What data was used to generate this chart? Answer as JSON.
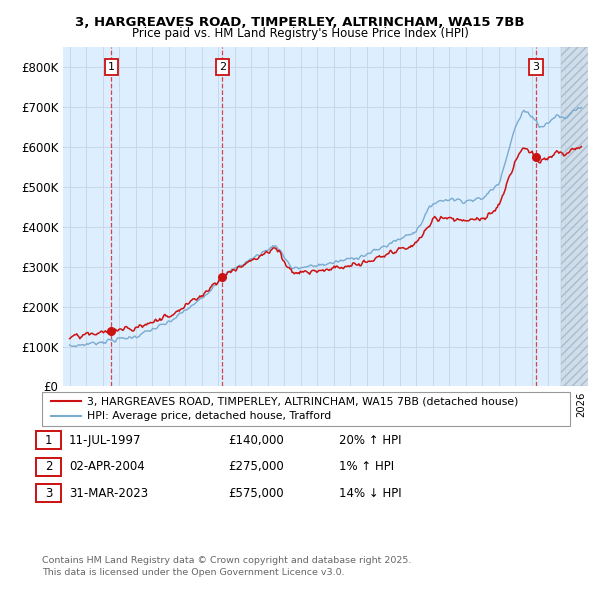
{
  "title_line1": "3, HARGREAVES ROAD, TIMPERLEY, ALTRINCHAM, WA15 7BB",
  "title_line2": "Price paid vs. HM Land Registry's House Price Index (HPI)",
  "ylim": [
    0,
    850000
  ],
  "yticks": [
    0,
    100000,
    200000,
    300000,
    400000,
    500000,
    600000,
    700000,
    800000
  ],
  "ytick_labels": [
    "£0",
    "£100K",
    "£200K",
    "£300K",
    "£400K",
    "£500K",
    "£600K",
    "£700K",
    "£800K"
  ],
  "xlim_start": 1994.6,
  "xlim_end": 2026.4,
  "hatch_start": 2024.75,
  "transactions": [
    {
      "num": 1,
      "date": "11-JUL-1997",
      "price": 140000,
      "hpi_rel": "20% ↑ HPI",
      "year": 1997.53
    },
    {
      "num": 2,
      "date": "02-APR-2004",
      "price": 275000,
      "hpi_rel": "1% ↑ HPI",
      "year": 2004.25
    },
    {
      "num": 3,
      "date": "31-MAR-2023",
      "price": 575000,
      "hpi_rel": "14% ↓ HPI",
      "year": 2023.25
    }
  ],
  "legend_red": "3, HARGREAVES ROAD, TIMPERLEY, ALTRINCHAM, WA15 7BB (detached house)",
  "legend_blue": "HPI: Average price, detached house, Trafford",
  "footnote_line1": "Contains HM Land Registry data © Crown copyright and database right 2025.",
  "footnote_line2": "This data is licensed under the Open Government Licence v3.0.",
  "hpi_color": "#7aabcf",
  "price_color": "#cc1111",
  "grid_color": "#c8d8e8",
  "bg_color": "#ddeeff",
  "hatch_bg": "#d0d8e0"
}
